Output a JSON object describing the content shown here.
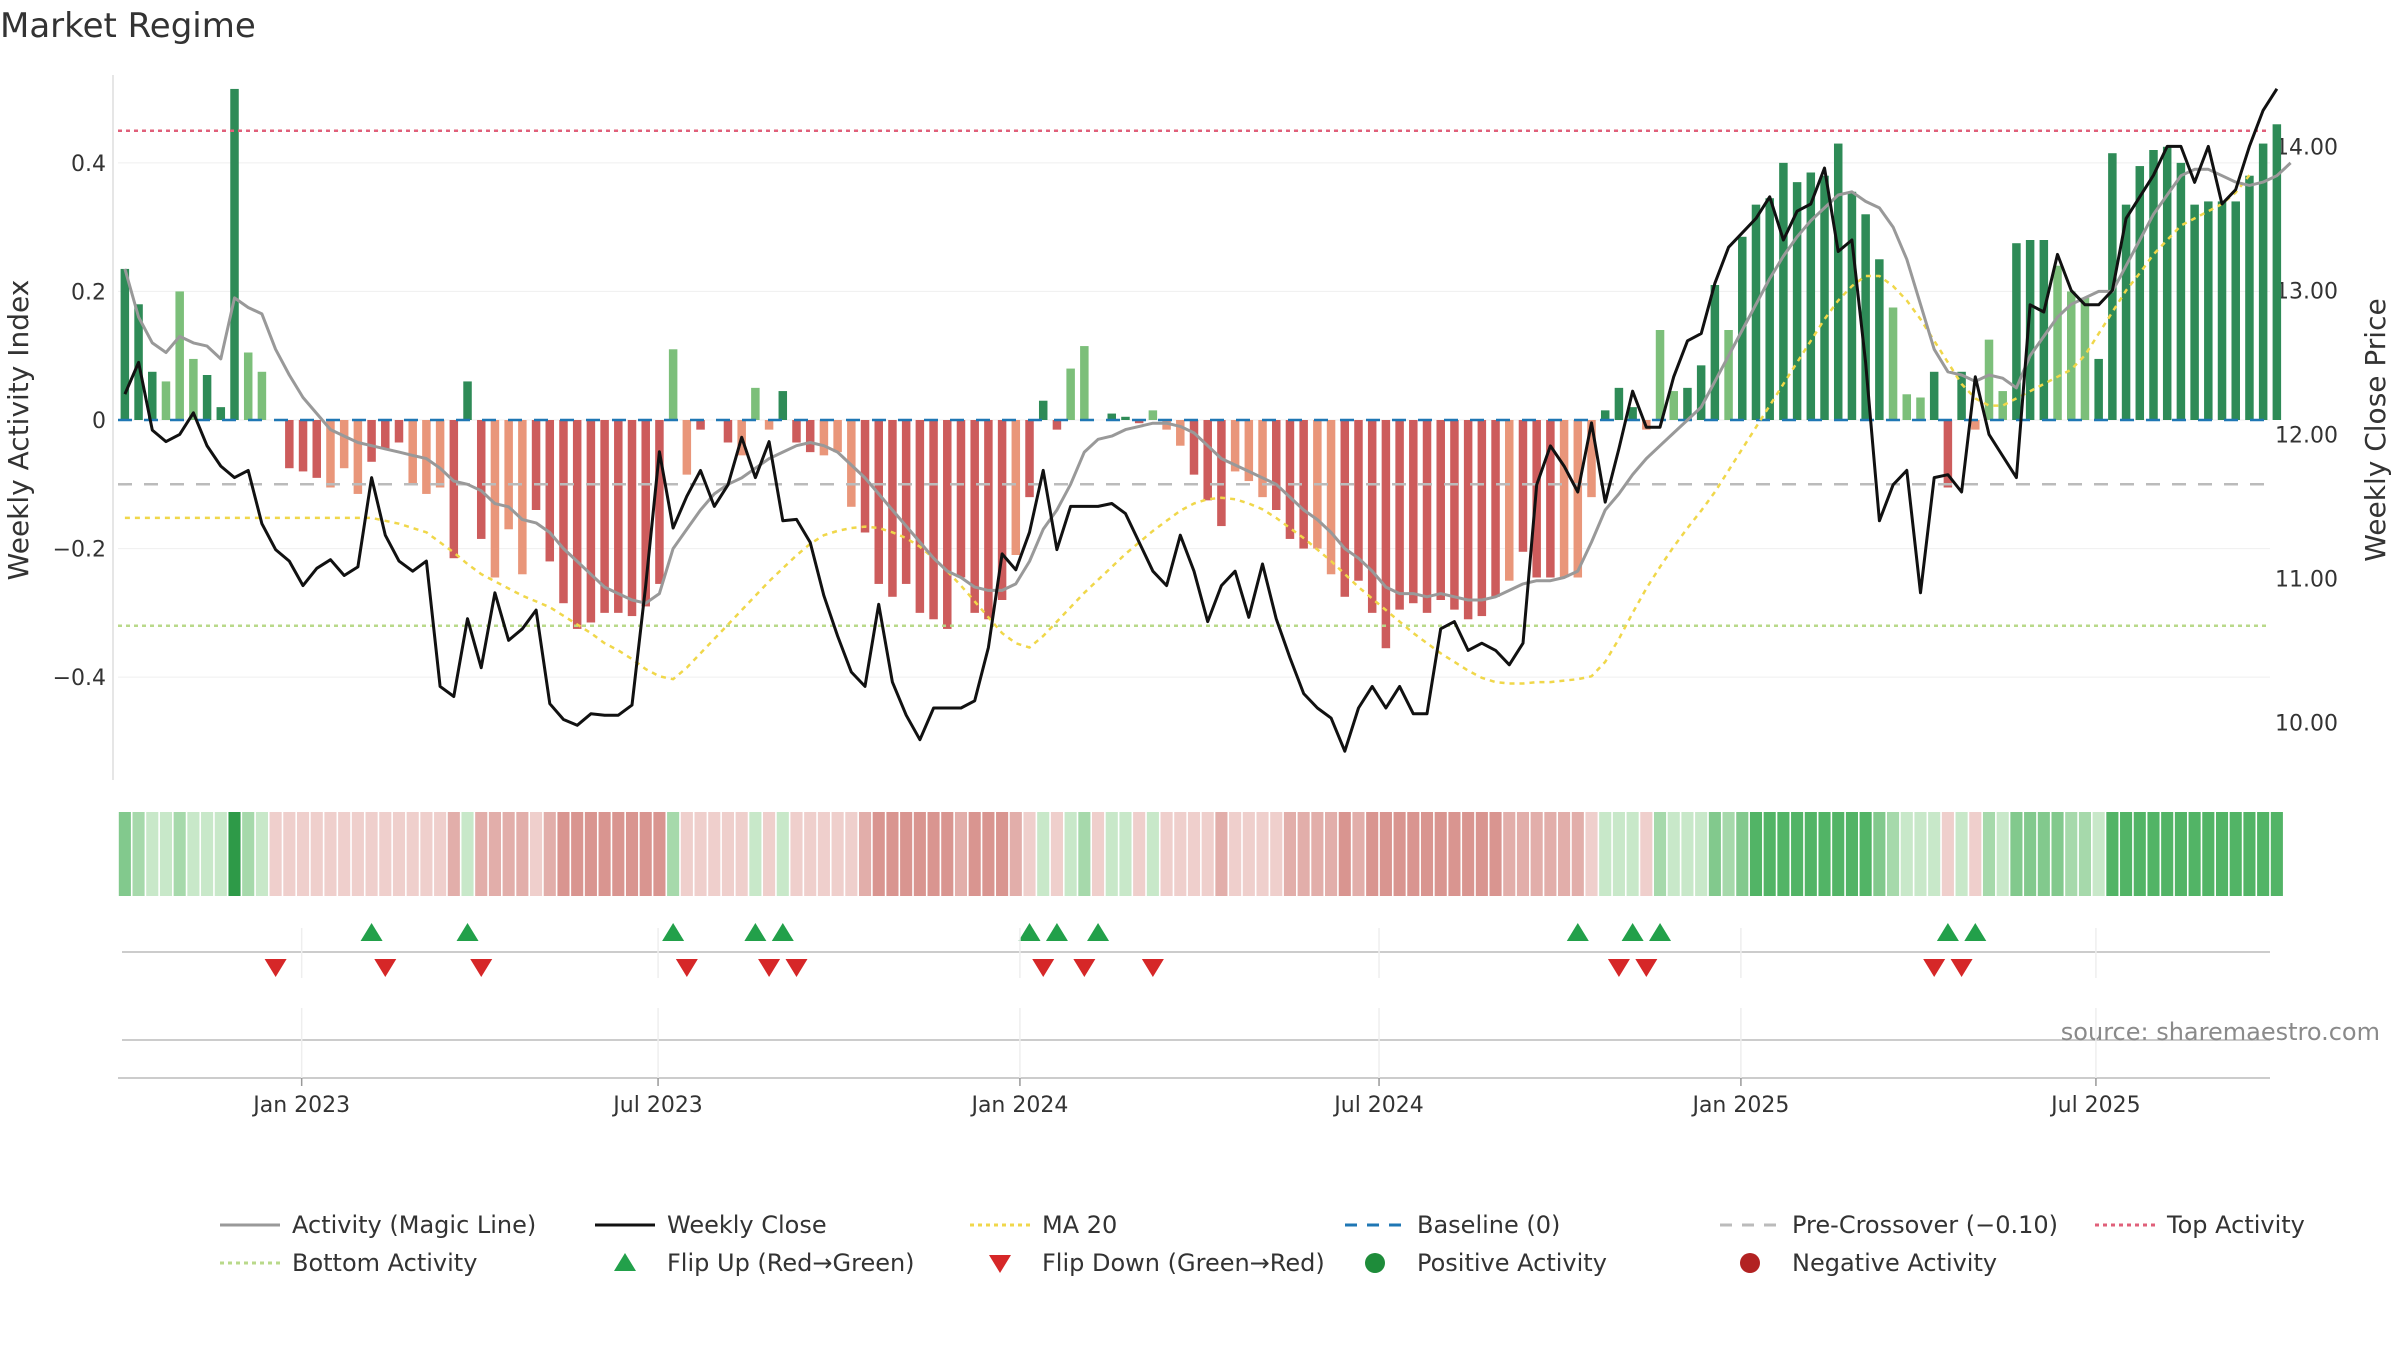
{
  "chart_data": {
    "type": "bar",
    "title": "Market Regime",
    "ylabel": "Weekly Activity Index",
    "y2label": "Weekly Close Price",
    "source": "source: sharemaestro.com",
    "ylim": [
      -0.56,
      0.56
    ],
    "y2lim": [
      9.6,
      14.6
    ],
    "yticks": [
      0.4,
      0.2,
      0,
      -0.2,
      -0.4
    ],
    "ytick_labels": [
      "0.4",
      "0.2",
      "0",
      "−0.2",
      "−0.4"
    ],
    "y2ticks": [
      14,
      13,
      12,
      11,
      10
    ],
    "y2tick_labels": [
      "14.00",
      "13.00",
      "12.00",
      "11.00",
      "10.00"
    ],
    "xticks": [
      {
        "label": "Jan 2023",
        "week": 13.4
      },
      {
        "label": "Jul 2023",
        "week": 39.4
      },
      {
        "label": "Jan 2024",
        "week": 65.8
      },
      {
        "label": "Jul 2024",
        "week": 92.0
      },
      {
        "label": "Jan 2025",
        "week": 118.4
      },
      {
        "label": "Jul 2025",
        "week": 144.3
      }
    ],
    "weeks": 157,
    "activity": [
      0.235,
      0.18,
      0.075,
      0.06,
      0.2,
      0.095,
      0.07,
      0.02,
      0.515,
      0.105,
      0.075,
      0,
      -0.075,
      -0.08,
      -0.09,
      -0.105,
      -0.075,
      -0.115,
      -0.065,
      -0.045,
      -0.035,
      -0.1,
      -0.115,
      -0.105,
      -0.215,
      0.06,
      -0.185,
      -0.245,
      -0.17,
      -0.24,
      -0.14,
      -0.22,
      -0.285,
      -0.325,
      -0.315,
      -0.3,
      -0.3,
      -0.305,
      -0.29,
      -0.255,
      0.11,
      -0.085,
      -0.015,
      0,
      -0.035,
      -0.055,
      0.05,
      -0.015,
      0.045,
      -0.035,
      -0.05,
      -0.055,
      -0.05,
      -0.135,
      -0.175,
      -0.255,
      -0.275,
      -0.255,
      -0.3,
      -0.31,
      -0.325,
      -0.245,
      -0.3,
      -0.31,
      -0.28,
      -0.21,
      -0.12,
      0.03,
      -0.015,
      0.08,
      0.115,
      0,
      0.01,
      0.005,
      -0.005,
      0.015,
      -0.015,
      -0.04,
      -0.085,
      -0.125,
      -0.165,
      -0.08,
      -0.095,
      -0.12,
      -0.14,
      -0.185,
      -0.2,
      -0.2,
      -0.24,
      -0.275,
      -0.25,
      -0.3,
      -0.355,
      -0.295,
      -0.285,
      -0.3,
      -0.28,
      -0.295,
      -0.31,
      -0.305,
      -0.275,
      -0.25,
      -0.205,
      -0.245,
      -0.245,
      -0.245,
      -0.245,
      -0.12,
      0.015,
      0.05,
      0.02,
      -0.015,
      0.14,
      0.045,
      0.05,
      0.085,
      0.21,
      0.14,
      0.285,
      0.335,
      0.345,
      0.4,
      0.37,
      0.385,
      0.38,
      0.43,
      0.355,
      0.32,
      0.25,
      0.175,
      0.04,
      0.035,
      0.075,
      -0.105,
      0.075,
      -0.015,
      0.125,
      0.045,
      0.275,
      0.28,
      0.28,
      0.24,
      0.2,
      0.19,
      0.095,
      0.415,
      0.335,
      0.395,
      0.42,
      0.425,
      0.4,
      0.335,
      0.34,
      0.34,
      0.34,
      0.38,
      0.43,
      0.46
    ],
    "weekly_close": [
      12.28,
      12.5,
      12.03,
      11.95,
      12.0,
      12.15,
      11.92,
      11.78,
      11.7,
      11.75,
      11.38,
      11.2,
      11.12,
      10.95,
      11.07,
      11.13,
      11.02,
      11.08,
      11.7,
      11.3,
      11.12,
      11.05,
      11.12,
      10.25,
      10.18,
      10.72,
      10.38,
      10.9,
      10.57,
      10.65,
      10.78,
      10.13,
      10.02,
      9.98,
      10.06,
      10.05,
      10.05,
      10.12,
      10.95,
      11.88,
      11.35,
      11.57,
      11.75,
      11.5,
      11.65,
      11.98,
      11.7,
      11.95,
      11.4,
      11.41,
      11.25,
      10.88,
      10.6,
      10.35,
      10.25,
      10.82,
      10.28,
      10.05,
      9.88,
      10.1,
      10.1,
      10.1,
      10.15,
      10.52,
      11.17,
      11.06,
      11.32,
      11.75,
      11.2,
      11.5,
      11.5,
      11.5,
      11.52,
      11.45,
      11.25,
      11.05,
      10.95,
      11.3,
      11.05,
      10.7,
      10.95,
      11.05,
      10.73,
      11.1,
      10.72,
      10.45,
      10.2,
      10.1,
      10.03,
      9.8,
      10.1,
      10.25,
      10.1,
      10.25,
      10.06,
      10.06,
      10.65,
      10.7,
      10.5,
      10.55,
      10.5,
      10.4,
      10.55,
      11.65,
      11.92,
      11.78,
      11.6,
      12.08,
      11.53,
      11.9,
      12.3,
      12.05,
      12.05,
      12.4,
      12.65,
      12.7,
      13.05,
      13.3,
      13.4,
      13.5,
      13.65,
      13.35,
      13.55,
      13.6,
      13.85,
      13.27,
      13.35,
      12.5,
      11.4,
      11.65,
      11.75,
      10.9,
      11.7,
      11.72,
      11.6,
      12.4,
      12.0,
      11.85,
      11.7,
      12.9,
      12.85,
      13.25,
      13.0,
      12.9,
      12.9,
      13.0,
      13.5,
      13.65,
      13.8,
      14.0,
      14.0,
      13.75,
      14.0,
      13.6,
      13.7,
      14.0,
      14.25,
      14.4
    ],
    "activity_ma": [
      0.235,
      0.16,
      0.12,
      0.105,
      0.13,
      0.12,
      0.115,
      0.095,
      0.19,
      0.175,
      0.165,
      0.11,
      0.07,
      0.035,
      0.01,
      -0.015,
      -0.025,
      -0.035,
      -0.04,
      -0.045,
      -0.05,
      -0.055,
      -0.06,
      -0.075,
      -0.095,
      -0.1,
      -0.11,
      -0.13,
      -0.135,
      -0.155,
      -0.16,
      -0.175,
      -0.2,
      -0.22,
      -0.24,
      -0.26,
      -0.27,
      -0.28,
      -0.285,
      -0.27,
      -0.2,
      -0.17,
      -0.14,
      -0.115,
      -0.1,
      -0.09,
      -0.075,
      -0.06,
      -0.05,
      -0.04,
      -0.035,
      -0.04,
      -0.05,
      -0.07,
      -0.09,
      -0.115,
      -0.14,
      -0.165,
      -0.19,
      -0.215,
      -0.235,
      -0.245,
      -0.26,
      -0.265,
      -0.265,
      -0.255,
      -0.22,
      -0.17,
      -0.14,
      -0.1,
      -0.05,
      -0.03,
      -0.025,
      -0.015,
      -0.01,
      -0.005,
      -0.005,
      -0.01,
      -0.02,
      -0.04,
      -0.06,
      -0.07,
      -0.08,
      -0.09,
      -0.1,
      -0.12,
      -0.14,
      -0.155,
      -0.175,
      -0.2,
      -0.215,
      -0.235,
      -0.26,
      -0.27,
      -0.27,
      -0.275,
      -0.27,
      -0.275,
      -0.28,
      -0.28,
      -0.275,
      -0.265,
      -0.255,
      -0.25,
      -0.25,
      -0.245,
      -0.235,
      -0.19,
      -0.14,
      -0.115,
      -0.085,
      -0.06,
      -0.04,
      -0.02,
      0,
      0.02,
      0.06,
      0.1,
      0.14,
      0.18,
      0.22,
      0.255,
      0.285,
      0.31,
      0.33,
      0.35,
      0.355,
      0.34,
      0.33,
      0.3,
      0.25,
      0.18,
      0.11,
      0.075,
      0.07,
      0.06,
      0.07,
      0.065,
      0.05,
      0.1,
      0.13,
      0.16,
      0.18,
      0.19,
      0.2,
      0.2,
      0.24,
      0.28,
      0.32,
      0.35,
      0.38,
      0.39,
      0.39,
      0.38,
      0.37,
      0.365,
      0.37,
      0.38,
      0.4
    ],
    "ma20_close": [
      11.42,
      11.42,
      11.42,
      11.42,
      11.42,
      11.42,
      11.42,
      11.42,
      11.42,
      11.42,
      11.42,
      11.42,
      11.42,
      11.42,
      11.42,
      11.42,
      11.42,
      11.42,
      11.42,
      11.4,
      11.38,
      11.35,
      11.32,
      11.25,
      11.18,
      11.1,
      11.03,
      10.98,
      10.93,
      10.88,
      10.84,
      10.8,
      10.74,
      10.68,
      10.62,
      10.55,
      10.5,
      10.44,
      10.37,
      10.32,
      10.3,
      10.38,
      10.48,
      10.58,
      10.68,
      10.78,
      10.88,
      10.98,
      11.07,
      11.16,
      11.24,
      11.3,
      11.33,
      11.35,
      11.36,
      11.35,
      11.32,
      11.28,
      11.22,
      11.14,
      11.05,
      10.95,
      10.84,
      10.73,
      10.62,
      10.55,
      10.52,
      10.6,
      10.7,
      10.8,
      10.9,
      10.99,
      11.08,
      11.17,
      11.25,
      11.33,
      11.4,
      11.47,
      11.52,
      11.55,
      11.56,
      11.55,
      11.52,
      11.48,
      11.42,
      11.35,
      11.28,
      11.2,
      11.12,
      11.03,
      10.94,
      10.86,
      10.78,
      10.7,
      10.62,
      10.55,
      10.48,
      10.42,
      10.36,
      10.31,
      10.28,
      10.27,
      10.27,
      10.28,
      10.28,
      10.29,
      10.3,
      10.32,
      10.42,
      10.58,
      10.76,
      10.93,
      11.08,
      11.22,
      11.35,
      11.47,
      11.6,
      11.75,
      11.9,
      12.05,
      12.2,
      12.35,
      12.5,
      12.65,
      12.8,
      12.93,
      13.03,
      13.1,
      13.1,
      13.03,
      12.93,
      12.8,
      12.65,
      12.5,
      12.35,
      12.25,
      12.2,
      12.2,
      12.25,
      12.3,
      12.35,
      12.4,
      12.45,
      12.55,
      12.7,
      12.85,
      13.0,
      13.12,
      13.25,
      13.35,
      13.45,
      13.5,
      13.55,
      13.6,
      13.68,
      13.8
    ],
    "flip_up_weeks": [
      18,
      25,
      40,
      46,
      48,
      66,
      68,
      71,
      106,
      110,
      112,
      133,
      135
    ],
    "flip_down_weeks": [
      11,
      19,
      26,
      41,
      47,
      49,
      67,
      70,
      75,
      109,
      111,
      132,
      134
    ],
    "reference_lines": {
      "baseline": 0,
      "pre_crossover": -0.1,
      "top_activity": 0.45,
      "bottom_activity": -0.32
    },
    "legend": [
      {
        "label": "Activity (Magic Line)",
        "kind": "line",
        "color": "#999999",
        "dash": "none"
      },
      {
        "label": "Weekly Close",
        "kind": "line",
        "color": "#111111",
        "dash": "none"
      },
      {
        "label": "MA 20",
        "kind": "line",
        "color": "#f0d74a",
        "dash": "4,4"
      },
      {
        "label": "Baseline (0)",
        "kind": "line",
        "color": "#1f77b4",
        "dash": "12,10"
      },
      {
        "label": "Pre-Crossover (−0.10)",
        "kind": "line",
        "color": "#bbbbbb",
        "dash": "12,10"
      },
      {
        "label": "Top Activity",
        "kind": "line",
        "color": "#e0607a",
        "dash": "4,4"
      },
      {
        "label": "Bottom Activity",
        "kind": "line",
        "color": "#b9d98a",
        "dash": "4,4"
      },
      {
        "label": "Flip Up (Red→Green)",
        "kind": "up",
        "color": "#22a04a",
        "dash": "none"
      },
      {
        "label": "Flip Down (Green→Red)",
        "kind": "down",
        "color": "#d62728",
        "dash": "none"
      },
      {
        "label": "Positive Activity",
        "kind": "dot",
        "color": "#1e8c3a",
        "dash": "none"
      },
      {
        "label": "Negative Activity",
        "kind": "dot",
        "color": "#b22222",
        "dash": "none"
      }
    ],
    "colors": {
      "pos_strong": "#2e8b57",
      "pos_weak": "#7cbf7a",
      "neg_strong": "#cd5c5c",
      "neg_weak": "#e9967a",
      "close": "#111111",
      "magic": "#999999",
      "ma20": "#f0d74a",
      "baseline": "#1f77b4",
      "pre": "#bbbbbb",
      "top": "#e0607a",
      "bottom": "#b9d98a",
      "flip_up": "#22a04a",
      "flip_down": "#d62728"
    }
  }
}
